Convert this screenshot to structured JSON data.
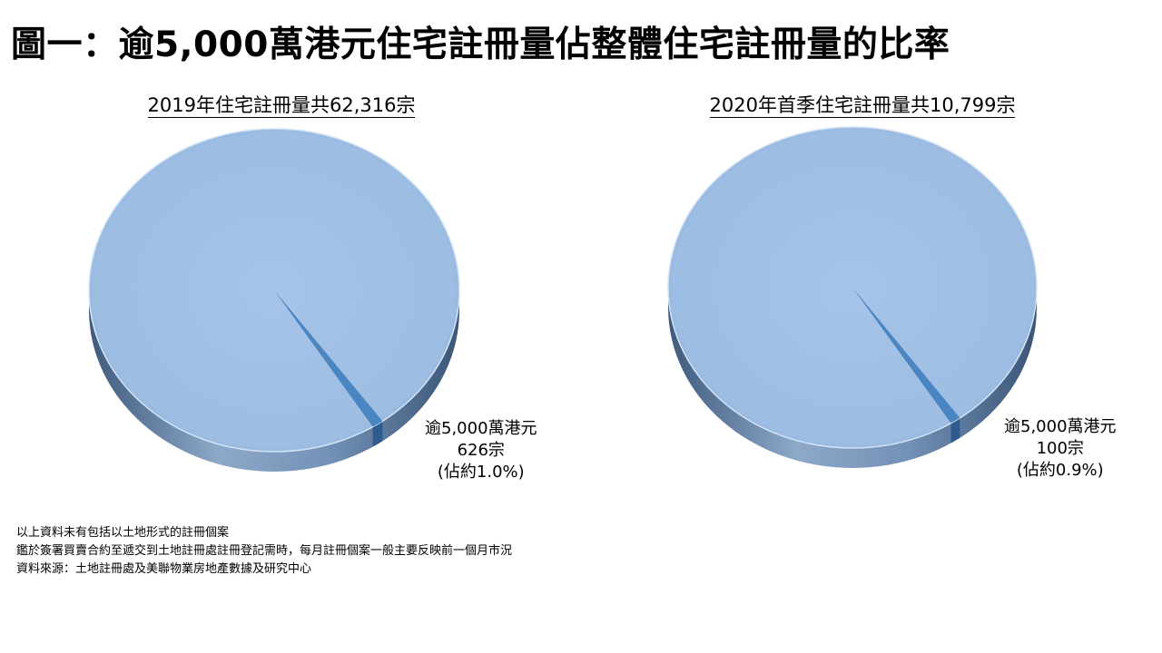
{
  "page": {
    "title": "圖一：逾5,000萬港元住宅註冊量佔整體住宅註冊量的比率",
    "notes": [
      "以上資料未有包括以土地形式的註冊個案",
      "鑑於簽署買賣合約至遞交到土地註冊處註冊登記需時，每月註冊個案一般主要反映前一個月市況",
      "資料來源：土地註冊處及美聯物業房地產數據及研究中心"
    ]
  },
  "chart_data": [
    {
      "type": "pie",
      "title": "2019年住宅註冊量共62,316宗",
      "total": 62316,
      "slices": [
        {
          "label": "",
          "value": 61690
        },
        {
          "label": "逾5,000萬港元",
          "value": 626,
          "count_label": "626宗",
          "share_label": "(佔約1.0%)"
        }
      ],
      "colors": {
        "main": "#9dbde3",
        "highlight": "#4c86c2"
      }
    },
    {
      "type": "pie",
      "title": "2020年首季住宅註冊量共10,799宗",
      "total": 10799,
      "slices": [
        {
          "label": "",
          "value": 10699
        },
        {
          "label": "逾5,000萬港元",
          "value": 100,
          "count_label": "100宗",
          "share_label": "(佔約0.9%)"
        }
      ],
      "colors": {
        "main": "#9dbde3",
        "highlight": "#4c86c2"
      }
    }
  ]
}
